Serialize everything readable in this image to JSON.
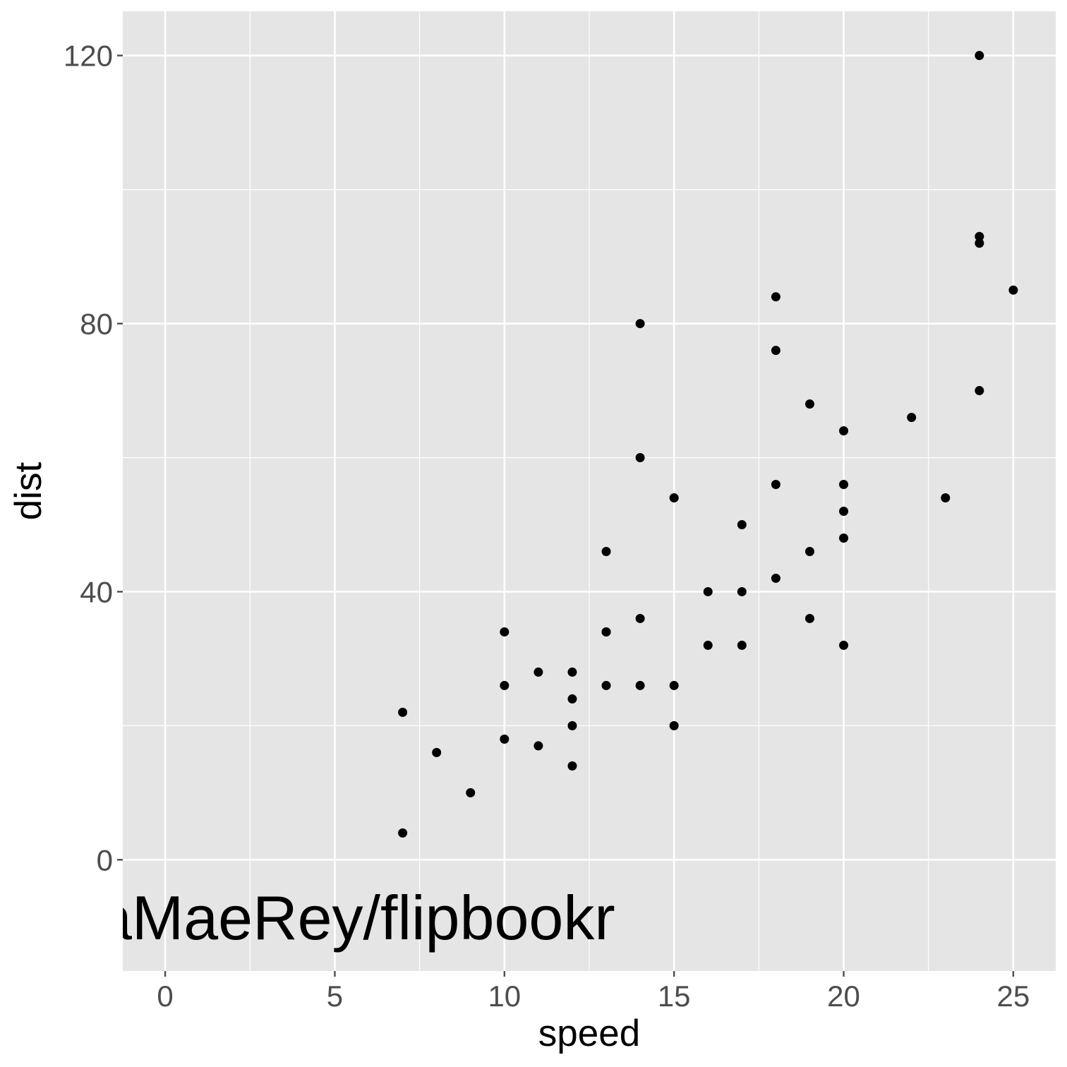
{
  "chart_data": {
    "type": "scatter",
    "xlabel": "speed",
    "ylabel": "dist",
    "xlim": [
      -1.25,
      26.25
    ],
    "ylim": [
      -16.6,
      126.6
    ],
    "x_ticks": [
      0,
      5,
      10,
      15,
      20,
      25
    ],
    "x_tick_labels": [
      "0",
      "5",
      "10",
      "15",
      "20",
      "25"
    ],
    "y_ticks": [
      0,
      40,
      80,
      120
    ],
    "y_tick_labels": [
      "0",
      "40",
      "80",
      "120"
    ],
    "grid": true,
    "legend": "none",
    "annotation": {
      "text": "aMaeRey/flipbookr",
      "x": -2.0,
      "y": -8.5
    },
    "colors": {
      "panel": "#e5e5e5",
      "grid": "#ffffff",
      "point": "#000000",
      "tick": "#4d4d4d"
    },
    "points": [
      {
        "x": 7,
        "y": 4
      },
      {
        "x": 7,
        "y": 22
      },
      {
        "x": 8,
        "y": 16
      },
      {
        "x": 9,
        "y": 10
      },
      {
        "x": 10,
        "y": 18
      },
      {
        "x": 10,
        "y": 26
      },
      {
        "x": 10,
        "y": 34
      },
      {
        "x": 11,
        "y": 17
      },
      {
        "x": 11,
        "y": 28
      },
      {
        "x": 12,
        "y": 14
      },
      {
        "x": 12,
        "y": 20
      },
      {
        "x": 12,
        "y": 24
      },
      {
        "x": 12,
        "y": 28
      },
      {
        "x": 13,
        "y": 26
      },
      {
        "x": 13,
        "y": 34
      },
      {
        "x": 13,
        "y": 34
      },
      {
        "x": 13,
        "y": 46
      },
      {
        "x": 14,
        "y": 26
      },
      {
        "x": 14,
        "y": 36
      },
      {
        "x": 14,
        "y": 60
      },
      {
        "x": 14,
        "y": 80
      },
      {
        "x": 15,
        "y": 20
      },
      {
        "x": 15,
        "y": 26
      },
      {
        "x": 15,
        "y": 54
      },
      {
        "x": 16,
        "y": 32
      },
      {
        "x": 16,
        "y": 40
      },
      {
        "x": 17,
        "y": 32
      },
      {
        "x": 17,
        "y": 40
      },
      {
        "x": 17,
        "y": 50
      },
      {
        "x": 18,
        "y": 42
      },
      {
        "x": 18,
        "y": 56
      },
      {
        "x": 18,
        "y": 76
      },
      {
        "x": 18,
        "y": 84
      },
      {
        "x": 19,
        "y": 36
      },
      {
        "x": 19,
        "y": 46
      },
      {
        "x": 19,
        "y": 68
      },
      {
        "x": 20,
        "y": 32
      },
      {
        "x": 20,
        "y": 48
      },
      {
        "x": 20,
        "y": 52
      },
      {
        "x": 20,
        "y": 56
      },
      {
        "x": 20,
        "y": 64
      },
      {
        "x": 22,
        "y": 66
      },
      {
        "x": 23,
        "y": 54
      },
      {
        "x": 24,
        "y": 70
      },
      {
        "x": 24,
        "y": 92
      },
      {
        "x": 24,
        "y": 93
      },
      {
        "x": 24,
        "y": 120
      },
      {
        "x": 25,
        "y": 85
      }
    ]
  }
}
